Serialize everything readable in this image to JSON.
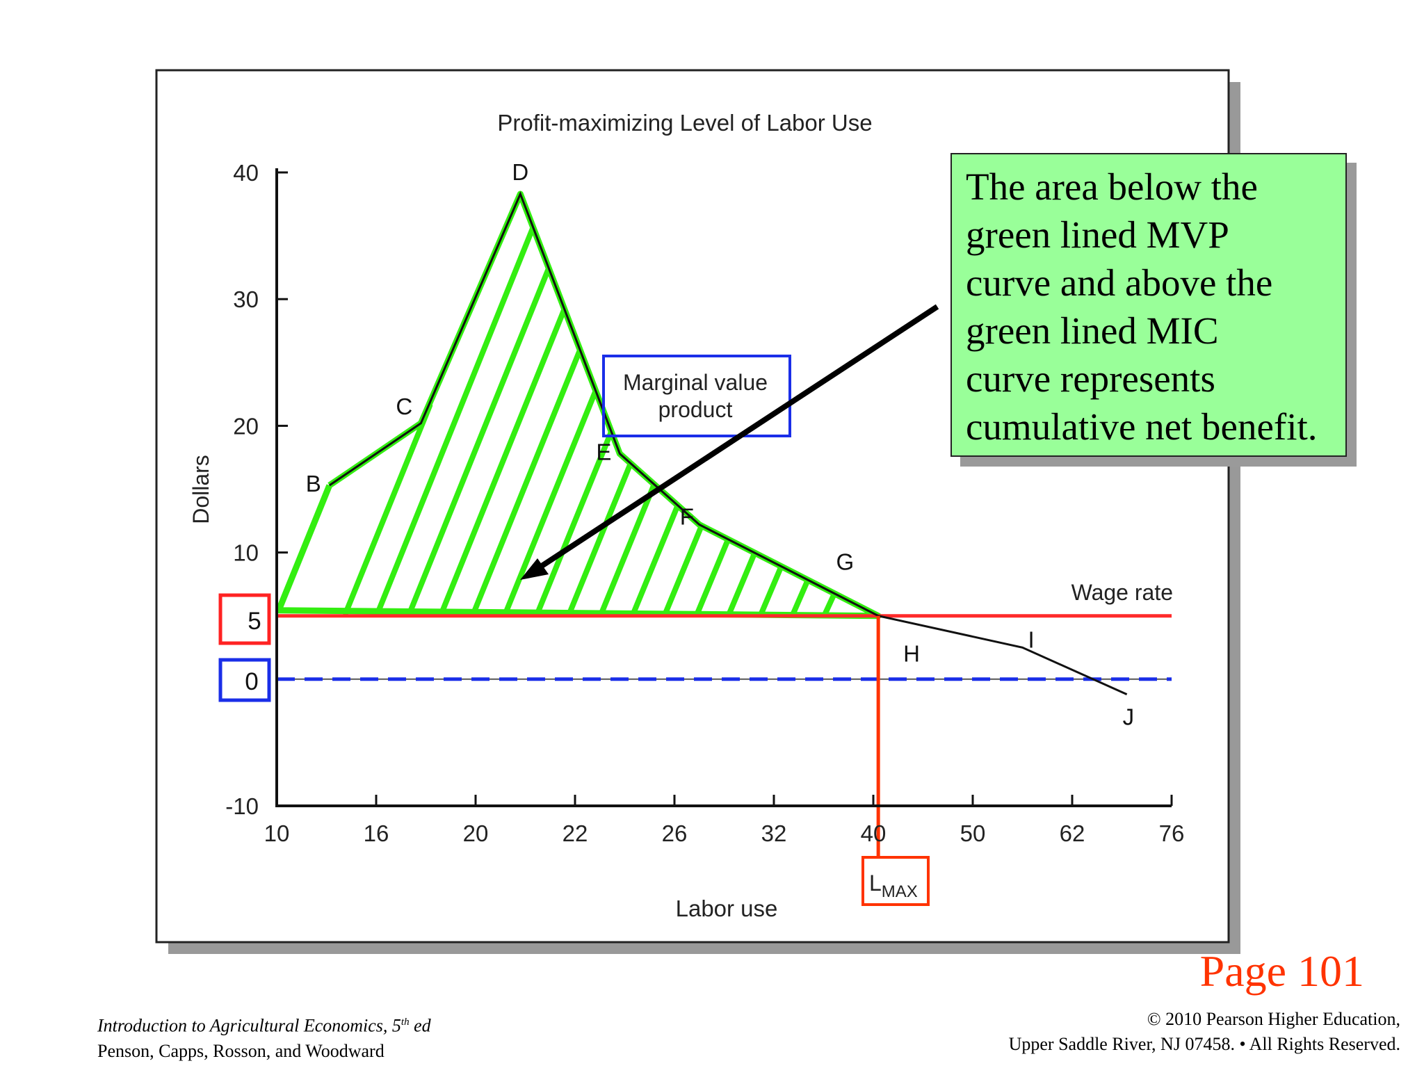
{
  "chart_data": {
    "type": "line",
    "title": "Profit-maximizing Level of Labor Use",
    "xlabel": "Labor use",
    "ylabel": "Dollars",
    "x_tick_labels": [
      "10",
      "16",
      "20",
      "22",
      "26",
      "32",
      "40",
      "50",
      "62",
      "76"
    ],
    "y_ticks": [
      -10,
      10,
      20,
      30,
      40
    ],
    "ylim": [
      -10,
      40
    ],
    "highlighted_y_values": [
      5,
      0
    ],
    "series": [
      {
        "name": "Marginal value product",
        "point_labels": [
          "B",
          "C",
          "D",
          "E",
          "F",
          "G",
          "H",
          "I",
          "J"
        ],
        "x_index": [
          0.53,
          1.45,
          2.45,
          3.45,
          4.25,
          5.5,
          6.05,
          7.5,
          8.55
        ],
        "y": [
          15.3,
          20.2,
          38.3,
          17.8,
          12.2,
          7.2,
          5,
          2.5,
          -1.2
        ]
      },
      {
        "name": "Wage rate",
        "y_constant": 5
      }
    ],
    "vertical_marker": {
      "label_main": "L",
      "label_sub": "MAX",
      "x_index": 6.05
    },
    "shaded_region": "area between MVP curve and wage rate, from B to H",
    "colors": {
      "mvp_shading": "#33ee11",
      "wage_line": "#ff2a2a",
      "zero_line": "#1a2ee8",
      "lmax_line": "#ff3300"
    }
  },
  "annotations": {
    "mvp_box": [
      "Marginal value",
      "product"
    ],
    "callout_lines": [
      "The area below the",
      "green lined MVP",
      "curve and above the",
      "green lined MIC",
      "curve represents",
      "cumulative net benefit."
    ]
  },
  "page_label": "Page 101",
  "footer": {
    "book_title": "Introduction to Agricultural Economics, 5",
    "edition_sup": "th",
    "edition_suffix": " ed",
    "authors": "Penson, Capps, Rosson, and Woodward",
    "copyright": "© 2010 Pearson Higher Education,",
    "address": "Upper Saddle River, NJ 07458. • All Rights Reserved."
  }
}
